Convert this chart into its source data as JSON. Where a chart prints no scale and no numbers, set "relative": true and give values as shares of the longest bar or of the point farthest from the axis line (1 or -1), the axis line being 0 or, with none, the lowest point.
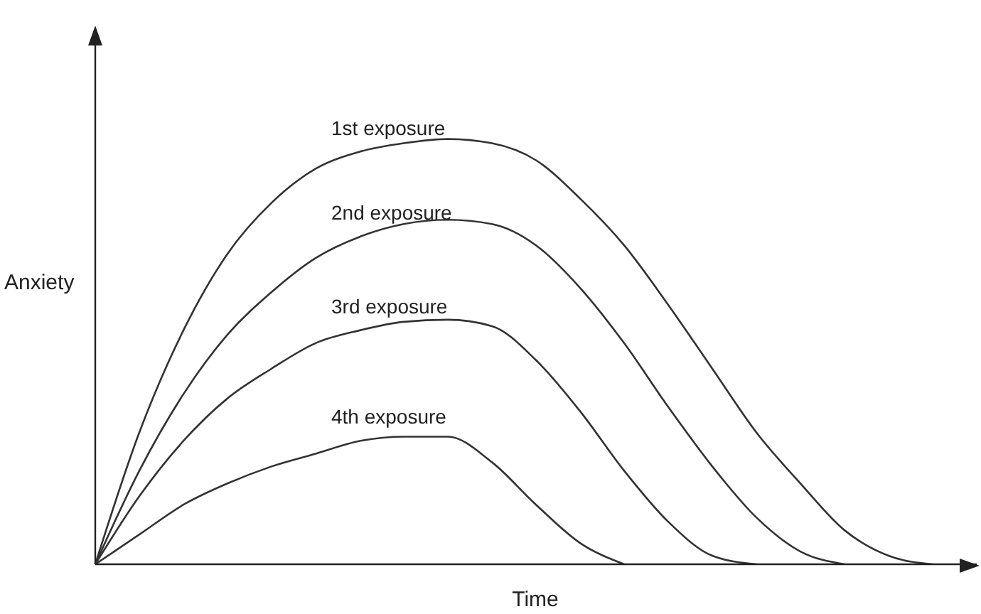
{
  "chart_data": {
    "type": "line",
    "relative": true,
    "xlabel": "Time",
    "ylabel": "Anxiety",
    "legend": false,
    "marker": "none",
    "line_style": "solid",
    "grid": false,
    "categories": [
      null,
      null,
      null,
      null,
      null,
      null,
      null,
      null,
      null,
      null,
      null,
      null,
      null,
      null,
      null,
      null,
      null,
      null,
      null,
      null,
      null
    ],
    "series": [
      {
        "name": "1st exposure",
        "color": "#333333",
        "values": [
          0,
          0.31,
          0.55,
          0.73,
          0.85,
          0.93,
          0.97,
          0.99,
          1.0,
          0.99,
          0.95,
          0.86,
          0.75,
          0.61,
          0.46,
          0.31,
          0.19,
          0.08,
          0.02,
          0,
          null
        ]
      },
      {
        "name": "2nd exposure",
        "color": "#333333",
        "values": [
          0,
          0.22,
          0.4,
          0.54,
          0.64,
          0.72,
          0.77,
          0.8,
          0.81,
          0.8,
          0.75,
          0.65,
          0.52,
          0.37,
          0.23,
          0.11,
          0.03,
          0,
          null,
          null,
          null
        ]
      },
      {
        "name": "3rd exposure",
        "color": "#333333",
        "values": [
          0,
          0.16,
          0.29,
          0.39,
          0.46,
          0.52,
          0.55,
          0.57,
          0.575,
          0.56,
          0.48,
          0.36,
          0.22,
          0.1,
          0.02,
          0,
          null,
          null,
          null,
          null,
          null
        ]
      },
      {
        "name": "4th exposure",
        "color": "#333333",
        "values": [
          0,
          0.07,
          0.14,
          0.19,
          0.23,
          0.26,
          0.29,
          0.3,
          0.3,
          0.24,
          0.14,
          0.05,
          0,
          null,
          null,
          null,
          null,
          null,
          null,
          null,
          null
        ]
      }
    ]
  }
}
